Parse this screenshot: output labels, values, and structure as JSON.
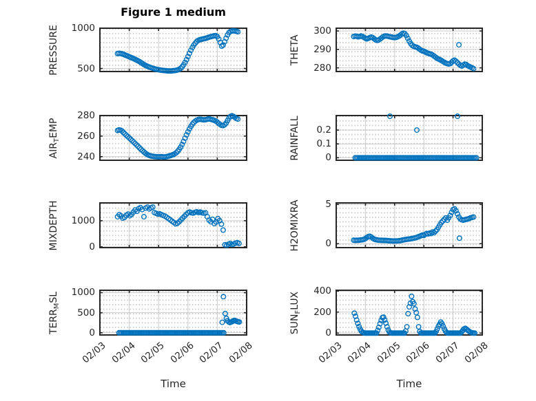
{
  "title": "Figure 1 medium",
  "x_axis": {
    "label": "Time",
    "xlim": [
      0,
      5
    ],
    "tick_values": [
      0,
      1,
      2,
      3,
      4,
      5
    ],
    "tick_labels": [
      "02/03",
      "02/04",
      "02/05",
      "02/06",
      "02/07",
      "02/08"
    ]
  },
  "colors": {
    "marker": "#0072bd",
    "axis_box": "#262626",
    "grid_major": "#c9c9c9",
    "grid_minor_dot": "#c4c4c4",
    "text": "#262626",
    "title_text": "#000000",
    "background": "#ffffff"
  },
  "chart_data": [
    {
      "name": "PRESSURE",
      "type": "scatter",
      "row": 0,
      "col": 0,
      "ylabel_parts": [
        {
          "text": "PRESSURE",
          "sub": false
        }
      ],
      "ylim": [
        462,
        1000
      ],
      "yticks": [
        {
          "value": 500,
          "label": "500"
        },
        {
          "value": 1000,
          "label": "1000"
        }
      ],
      "series": {
        "x_start": 0.6,
        "x_step": 0.05,
        "y": [
          685,
          688,
          687,
          683,
          676,
          668,
          661,
          653,
          645,
          638,
          630,
          622,
          613,
          604,
          595,
          585,
          573,
          561,
          549,
          539,
          530,
          522,
          515,
          509,
          503,
          497,
          492,
          488,
          484,
          481,
          478,
          476,
          474,
          472,
          470,
          469,
          469,
          470,
          472,
          474,
          477,
          482,
          490,
          502,
          520,
          545,
          575,
          610,
          648,
          688,
          726,
          760,
          790,
          815,
          835,
          848,
          856,
          862,
          866,
          870,
          874,
          880,
          886,
          892,
          897,
          902,
          906,
          908,
          895,
          865,
          822,
          778,
          792,
          832,
          876,
          916,
          945,
          960,
          966,
          968,
          966,
          961,
          956
        ]
      }
    },
    {
      "name": "THETA",
      "type": "scatter",
      "row": 0,
      "col": 1,
      "ylabel_parts": [
        {
          "text": "THETA",
          "sub": false
        }
      ],
      "ylim": [
        278,
        301.5
      ],
      "yticks": [
        {
          "value": 280,
          "label": "280"
        },
        {
          "value": 290,
          "label": "290"
        },
        {
          "value": 300,
          "label": "300"
        }
      ],
      "series": {
        "x_start": 0.6,
        "x_step": 0.05,
        "y": [
          297.0,
          297.2,
          297.1,
          296.8,
          297.0,
          297.3,
          297.0,
          296.5,
          296.0,
          295.7,
          296.0,
          296.4,
          296.7,
          296.4,
          295.8,
          295.2,
          294.9,
          295.1,
          295.6,
          296.2,
          296.8,
          297.2,
          297.3,
          297.2,
          297.0,
          296.8,
          296.7,
          296.5,
          296.4,
          296.5,
          296.8,
          297.2,
          297.8,
          298.4,
          298.8,
          298.5,
          297.5,
          296.0,
          294.5,
          293.2,
          292.2,
          291.7,
          291.4,
          291.2,
          290.8,
          290.2,
          289.6,
          289.2,
          289.0,
          288.6,
          288.2,
          287.9,
          287.6,
          287.4,
          287.0,
          286.4,
          285.8,
          285.2,
          284.8,
          284.4,
          284.0,
          283.5,
          283.0,
          282.6,
          282.3,
          282.1,
          282.3,
          283.0,
          283.8,
          284.2,
          283.6,
          282.8,
          282.0,
          281.4,
          281.0,
          281.5,
          282.0,
          281.8,
          281.2,
          280.8,
          280.4,
          280.0,
          279.6
        ]
      },
      "points": [
        [
          4.2,
          292.5
        ]
      ]
    },
    {
      "name": "AIR_TEMP",
      "type": "scatter",
      "row": 1,
      "col": 0,
      "ylabel_parts": [
        {
          "text": "AIR",
          "sub": false
        },
        {
          "text": "T",
          "sub": true
        },
        {
          "text": "EMP",
          "sub": false
        }
      ],
      "ylim": [
        236.5,
        280
      ],
      "yticks": [
        {
          "value": 240,
          "label": "240"
        },
        {
          "value": 260,
          "label": "260"
        },
        {
          "value": 280,
          "label": "280"
        }
      ],
      "series": {
        "x_start": 0.6,
        "x_step": 0.05,
        "y": [
          265.5,
          266.0,
          265.8,
          265.0,
          263.6,
          262.2,
          260.8,
          259.5,
          258.2,
          257.0,
          255.6,
          254.2,
          252.8,
          251.4,
          250.0,
          248.6,
          247.2,
          245.8,
          244.6,
          243.4,
          242.4,
          241.6,
          241.0,
          240.6,
          240.3,
          240.1,
          240.0,
          239.9,
          239.8,
          239.9,
          240.0,
          239.8,
          239.7,
          239.9,
          240.2,
          240.6,
          241.0,
          241.5,
          242.0,
          242.8,
          243.8,
          245.2,
          247.0,
          249.2,
          251.8,
          254.8,
          258.0,
          261.2,
          264.2,
          267.0,
          269.5,
          271.6,
          273.3,
          274.6,
          275.5,
          276.1,
          276.4,
          276.3,
          276.0,
          275.8,
          276.0,
          276.4,
          276.7,
          276.6,
          276.2,
          275.8,
          275.3,
          274.6,
          273.6,
          272.4,
          271.2,
          270.4,
          270.2,
          271.0,
          272.8,
          275.2,
          277.6,
          279.2,
          279.8,
          279.2,
          278.2,
          277.2,
          276.6
        ]
      }
    },
    {
      "name": "RAINFALL",
      "type": "scatter",
      "row": 1,
      "col": 1,
      "ylabel_parts": [
        {
          "text": "RAINFALL",
          "sub": false
        }
      ],
      "ylim": [
        -0.018,
        0.305
      ],
      "yticks": [
        {
          "value": 0,
          "label": "0"
        },
        {
          "value": 0.1,
          "label": "0.1"
        },
        {
          "value": 0.2,
          "label": "0.2"
        }
      ],
      "runs": [
        {
          "x0": 0.65,
          "x1": 4.8,
          "y": 0,
          "count": 90
        }
      ],
      "points": [
        [
          1.84,
          0.3
        ],
        [
          2.76,
          0.2
        ],
        [
          4.15,
          0.3
        ]
      ]
    },
    {
      "name": "MIXDEPTH",
      "type": "scatter",
      "row": 2,
      "col": 0,
      "ylabel_parts": [
        {
          "text": "MIXDEPTH",
          "sub": false
        }
      ],
      "ylim": [
        -30,
        1680
      ],
      "yticks": [
        {
          "value": 0,
          "label": "0"
        },
        {
          "value": 1000,
          "label": "1000"
        }
      ],
      "series": {
        "x_start": 0.6,
        "x_step": 0.06,
        "y": [
          1150,
          1230,
          1180,
          1100,
          1130,
          1210,
          1250,
          1190,
          1240,
          1330,
          1410,
          1360,
          1460,
          1500,
          1430,
          1150,
          1480,
          1520,
          1450,
          1490,
          1520,
          1310,
          1280,
          1250,
          1260,
          1230,
          1200,
          1170,
          1130,
          1080,
          1030,
          980,
          930,
          880,
          900,
          960,
          1030,
          1100,
          1170,
          1240,
          1300,
          1330,
          1300,
          1290,
          1320,
          1340,
          1310,
          1330,
          1300,
          1290,
          1300,
          1150,
          1020,
          960,
          1050,
          890,
          950,
          1080,
          1000,
          870,
          640,
          80,
          60,
          100,
          130,
          90,
          110,
          140,
          160,
          130
        ]
      }
    },
    {
      "name": "H2OMIXRA",
      "type": "scatter",
      "row": 2,
      "col": 1,
      "ylabel_parts": [
        {
          "text": "H2OMIXRA",
          "sub": false
        }
      ],
      "ylim": [
        -0.5,
        5.2
      ],
      "yticks": [
        {
          "value": 0,
          "label": "0"
        },
        {
          "value": 5,
          "label": "5"
        }
      ],
      "series": {
        "x_start": 0.6,
        "x_step": 0.05,
        "y": [
          0.45,
          0.42,
          0.45,
          0.43,
          0.46,
          0.48,
          0.5,
          0.56,
          0.65,
          0.8,
          0.9,
          0.95,
          0.85,
          0.7,
          0.58,
          0.52,
          0.48,
          0.45,
          0.44,
          0.43,
          0.42,
          0.42,
          0.41,
          0.4,
          0.38,
          0.37,
          0.35,
          0.34,
          0.34,
          0.35,
          0.36,
          0.38,
          0.4,
          0.44,
          0.48,
          0.52,
          0.55,
          0.58,
          0.6,
          0.63,
          0.66,
          0.7,
          0.74,
          0.8,
          0.86,
          0.94,
          1.02,
          1.1,
          1.05,
          1.2,
          1.3,
          1.25,
          1.35,
          1.3,
          1.5,
          1.4,
          1.6,
          1.8,
          2.1,
          2.4,
          2.7,
          2.9,
          3.1,
          3.3,
          3.0,
          3.3,
          3.6,
          4.0,
          4.35,
          4.45,
          4.2,
          3.8,
          3.4,
          3.15,
          3.05,
          3.0,
          3.05,
          3.1,
          3.15,
          3.2,
          3.3,
          3.35,
          3.4
        ]
      },
      "points": [
        [
          4.22,
          0.7
        ]
      ]
    },
    {
      "name": "TERR_MSL",
      "type": "scatter",
      "row": 3,
      "col": 0,
      "ylabel_parts": [
        {
          "text": "TERR",
          "sub": false
        },
        {
          "text": "M",
          "sub": true
        },
        {
          "text": "SL",
          "sub": false
        }
      ],
      "ylim": [
        -55,
        1060
      ],
      "yticks": [
        {
          "value": 0,
          "label": "0"
        },
        {
          "value": 500,
          "label": "500"
        },
        {
          "value": 1000,
          "label": "1000"
        }
      ],
      "runs": [
        {
          "x0": 0.65,
          "x1": 4.22,
          "y": 0,
          "count": 80
        }
      ],
      "points": [
        [
          4.17,
          260
        ],
        [
          4.21,
          900
        ],
        [
          4.27,
          480
        ],
        [
          4.31,
          360
        ],
        [
          4.35,
          300
        ],
        [
          4.39,
          270
        ],
        [
          4.43,
          255
        ],
        [
          4.47,
          265
        ],
        [
          4.51,
          280
        ],
        [
          4.55,
          300
        ],
        [
          4.59,
          310
        ],
        [
          4.63,
          295
        ],
        [
          4.67,
          285
        ],
        [
          4.71,
          275
        ],
        [
          4.75,
          270
        ]
      ]
    },
    {
      "name": "SUN_FLUX",
      "type": "scatter",
      "row": 3,
      "col": 1,
      "ylabel_parts": [
        {
          "text": "SUN",
          "sub": false
        },
        {
          "text": "F",
          "sub": true
        },
        {
          "text": "LUX",
          "sub": false
        }
      ],
      "ylim": [
        -18,
        408
      ],
      "yticks": [
        {
          "value": 0,
          "label": "0"
        },
        {
          "value": 200,
          "label": "200"
        },
        {
          "value": 400,
          "label": "400"
        }
      ],
      "series": {
        "x_start": 0.62,
        "x_step": 0.04,
        "y": [
          190,
          160,
          125,
          92,
          62,
          38,
          18,
          8,
          3,
          0,
          0,
          0,
          0,
          0,
          0,
          0,
          0,
          0,
          0,
          0,
          25,
          55,
          90,
          120,
          148,
          152,
          125,
          95,
          60,
          30,
          10,
          2,
          0,
          0,
          0,
          0,
          0,
          0,
          0,
          0,
          0,
          0,
          0,
          0,
          20,
          60,
          185,
          250,
          285,
          350,
          300,
          280,
          230,
          195,
          150,
          60,
          15,
          0,
          0,
          0,
          0,
          0,
          0,
          0,
          0,
          0,
          0,
          0,
          0,
          0,
          15,
          40,
          65,
          85,
          105,
          90,
          65,
          40,
          18,
          5,
          0,
          0,
          0,
          0,
          0,
          0,
          0,
          0,
          0,
          0,
          0,
          0,
          12,
          28,
          40,
          45,
          38,
          28,
          18,
          10,
          5,
          2,
          0,
          0
        ]
      }
    }
  ]
}
